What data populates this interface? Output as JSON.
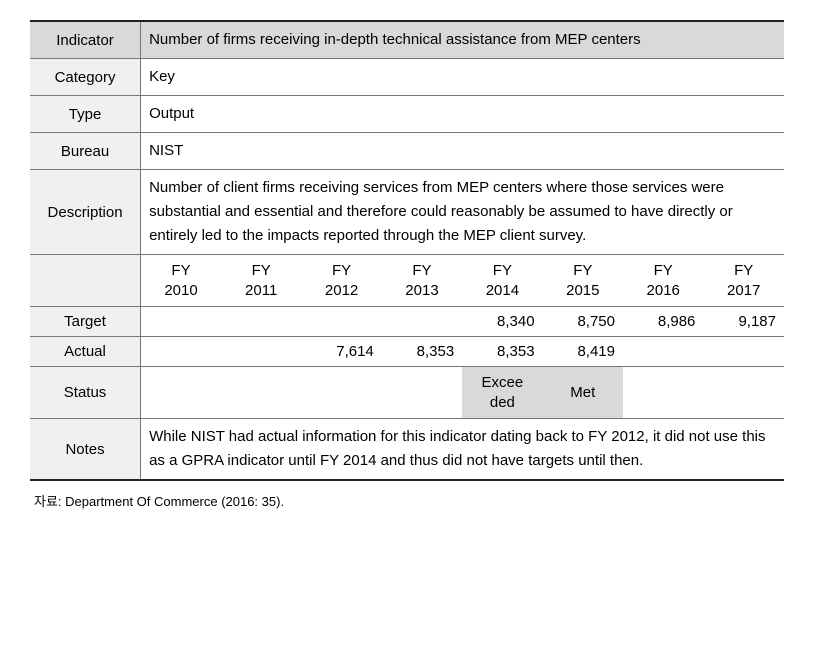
{
  "table": {
    "label_bg": "#f0f0f0",
    "header_bg": "#d9d9d9",
    "border_color": "#777777",
    "heavy_border_color": "#222222",
    "rows": {
      "indicator": {
        "label": "Indicator",
        "value": "Number of firms receiving in-depth technical assistance from MEP centers"
      },
      "category": {
        "label": "Category",
        "value": "Key"
      },
      "type": {
        "label": "Type",
        "value": "Output"
      },
      "bureau": {
        "label": "Bureau",
        "value": "NIST"
      },
      "description": {
        "label": "Description",
        "value": "Number of client firms receiving services from MEP centers where those services were substantial and essential and therefore could reasonably be assumed to have directly or entirely led to the impacts reported through the MEP client survey."
      },
      "notes": {
        "label": "Notes",
        "value": "While NIST had actual information for this indicator dating back to FY 2012, it did not use this as a GPRA indicator until FY 2014 and thus did not have targets until then."
      }
    },
    "years_label_prefix": "FY",
    "years": [
      "2010",
      "2011",
      "2012",
      "2013",
      "2014",
      "2015",
      "2016",
      "2017"
    ],
    "target": {
      "label": "Target",
      "values": [
        "",
        "",
        "",
        "",
        "8,340",
        "8,750",
        "8,986",
        "9,187"
      ]
    },
    "actual": {
      "label": "Actual",
      "values": [
        "",
        "",
        "7,614",
        "8,353",
        "8,353",
        "8,419",
        "",
        ""
      ]
    },
    "status": {
      "label": "Status",
      "values": [
        "",
        "",
        "",
        "",
        "Exceeded",
        "Met",
        "",
        ""
      ],
      "highlighted": [
        false,
        false,
        false,
        false,
        true,
        true,
        false,
        false
      ]
    }
  },
  "source": "자료: Department Of Commerce (2016: 35)."
}
